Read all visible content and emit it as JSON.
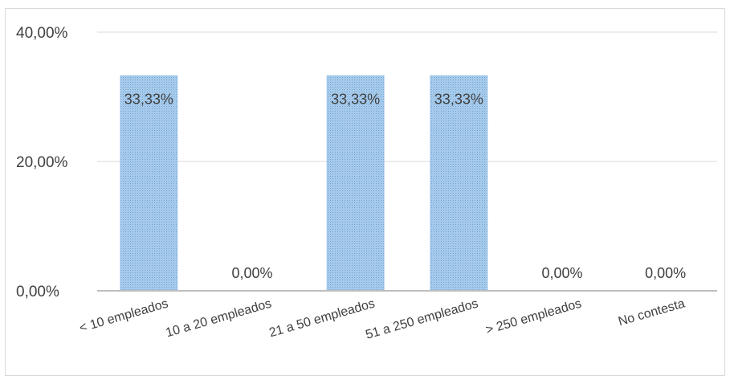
{
  "chart_data": {
    "type": "bar",
    "title": "",
    "xlabel": "",
    "ylabel": "",
    "categories": [
      "< 10 empleados",
      "10 a 20 empleados",
      "21 a 50 empleados",
      "51 a 250 empleados",
      "> 250 empleados",
      "No contesta"
    ],
    "values": [
      33.33,
      0.0,
      33.33,
      33.33,
      0.0,
      0.0
    ],
    "value_labels": [
      "33,33%",
      "0,00%",
      "33,33%",
      "33,33%",
      "0,00%",
      "0,00%"
    ],
    "ylim": [
      0,
      40
    ],
    "yticks": [
      0,
      20,
      40
    ],
    "ytick_labels": [
      "0,00%",
      "20,00%",
      "40,00%"
    ],
    "grid": true,
    "legend": "none",
    "bar_color": "#9dc3e6",
    "bar_pattern": "dotted",
    "axis_color": "#bfbfbf",
    "grid_color": "#d9d9d9",
    "text_color": "#404040"
  }
}
